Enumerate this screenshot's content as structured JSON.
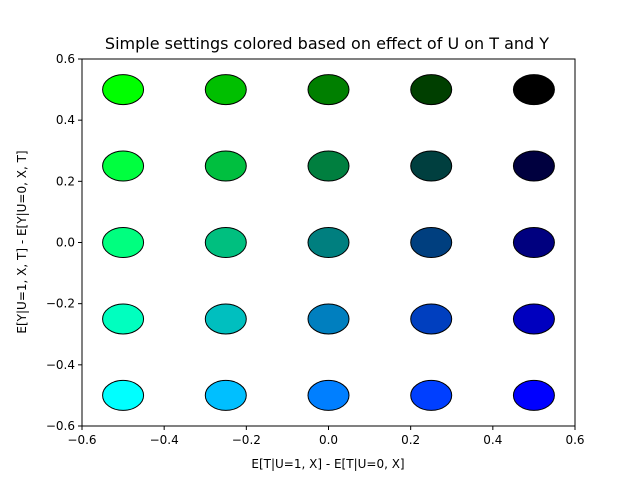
{
  "chart_data": {
    "type": "scatter",
    "title": "Simple settings colored based on effect of U on T and Y",
    "xlabel": "E[T|U=1, X] - E[T|U=0, X]",
    "ylabel": "E[Y|U=1, X, T] - E[Y|U=0, X, T]",
    "xlim": [
      -0.6,
      0.6
    ],
    "ylim": [
      -0.6,
      0.6
    ],
    "xticks": [
      -0.6,
      -0.4,
      -0.2,
      0.0,
      0.2,
      0.4,
      0.6
    ],
    "yticks": [
      -0.6,
      -0.4,
      -0.2,
      0.0,
      0.2,
      0.4,
      0.6
    ],
    "xtick_labels": [
      "−0.6",
      "−0.4",
      "−0.2",
      "0.0",
      "0.2",
      "0.4",
      "0.6"
    ],
    "ytick_labels": [
      "−0.6",
      "−0.4",
      "−0.2",
      "0.0",
      "0.2",
      "0.4",
      "0.6"
    ],
    "grid": false,
    "legend": "none",
    "marker_edge_color": "#000000",
    "points": [
      {
        "x": -0.5,
        "y": 0.5,
        "color": "#00ff00"
      },
      {
        "x": -0.25,
        "y": 0.5,
        "color": "#00bf00"
      },
      {
        "x": 0.0,
        "y": 0.5,
        "color": "#007f00"
      },
      {
        "x": 0.25,
        "y": 0.5,
        "color": "#003f00"
      },
      {
        "x": 0.5,
        "y": 0.5,
        "color": "#000000"
      },
      {
        "x": -0.5,
        "y": 0.25,
        "color": "#00ff3f"
      },
      {
        "x": -0.25,
        "y": 0.25,
        "color": "#00bf3f"
      },
      {
        "x": 0.0,
        "y": 0.25,
        "color": "#007f3f"
      },
      {
        "x": 0.25,
        "y": 0.25,
        "color": "#003f3f"
      },
      {
        "x": 0.5,
        "y": 0.25,
        "color": "#00003f"
      },
      {
        "x": -0.5,
        "y": 0.0,
        "color": "#00ff7f"
      },
      {
        "x": -0.25,
        "y": 0.0,
        "color": "#00bf7f"
      },
      {
        "x": 0.0,
        "y": 0.0,
        "color": "#007f7f"
      },
      {
        "x": 0.25,
        "y": 0.0,
        "color": "#003f7f"
      },
      {
        "x": 0.5,
        "y": 0.0,
        "color": "#00007f"
      },
      {
        "x": -0.5,
        "y": -0.25,
        "color": "#00ffbf"
      },
      {
        "x": -0.25,
        "y": -0.25,
        "color": "#00bfbf"
      },
      {
        "x": 0.0,
        "y": -0.25,
        "color": "#007fbf"
      },
      {
        "x": 0.25,
        "y": -0.25,
        "color": "#003fbf"
      },
      {
        "x": 0.5,
        "y": -0.25,
        "color": "#0000bf"
      },
      {
        "x": -0.5,
        "y": -0.5,
        "color": "#00ffff"
      },
      {
        "x": -0.25,
        "y": -0.5,
        "color": "#00bfff"
      },
      {
        "x": 0.0,
        "y": -0.5,
        "color": "#007fff"
      },
      {
        "x": 0.25,
        "y": -0.5,
        "color": "#003fff"
      },
      {
        "x": 0.5,
        "y": -0.5,
        "color": "#0000ff"
      }
    ]
  }
}
